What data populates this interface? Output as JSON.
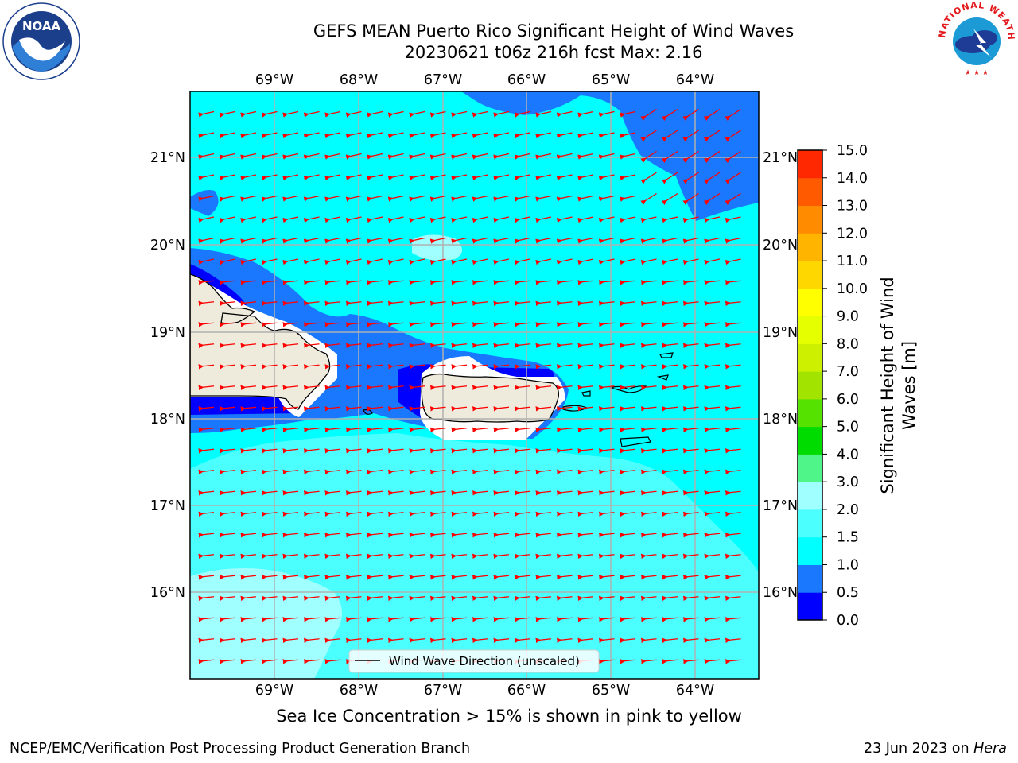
{
  "title": {
    "line1": "GEFS MEAN Puerto Rico Significant Height of Wind Waves",
    "line2": "20230621 t06z 216h fcst   Max: 2.16"
  },
  "logos": {
    "left": {
      "text": "NOAA",
      "ring_text": "NATIONAL OCEANIC AND ATMOSPHERIC ADMINISTRATION · U.S. DEPARTMENT OF COMMERCE"
    },
    "right": {
      "ring_text": "NATIONAL WEATHER SERVICE"
    }
  },
  "map": {
    "lon_labels": [
      "69°W",
      "68°W",
      "67°W",
      "66°W",
      "65°W",
      "64°W"
    ],
    "lat_labels": [
      "21°N",
      "20°N",
      "19°N",
      "18°N",
      "17°N",
      "16°N"
    ],
    "legend_label": "Wind Wave Direction (unscaled)",
    "land_color": "#efebdc",
    "arrow_color": "#ff0000"
  },
  "colorbar": {
    "label_line1": "Significant Height of Wind",
    "label_line2": "Waves [m]",
    "ticks": [
      "0.0",
      "0.5",
      "1.0",
      "1.5",
      "2.0",
      "3.0",
      "4.0",
      "5.0",
      "6.0",
      "7.0",
      "8.0",
      "9.0",
      "10.0",
      "11.0",
      "12.0",
      "13.0",
      "14.0",
      "15.0"
    ],
    "colors": [
      "#0000ff",
      "#1a78ff",
      "#00ffff",
      "#4cffff",
      "#a0ffff",
      "#50f58a",
      "#00dc00",
      "#56e200",
      "#a2e400",
      "#cdf000",
      "#e6ff00",
      "#ffff00",
      "#ffd700",
      "#ffb400",
      "#ff8c00",
      "#ff5a00",
      "#ff2800",
      "#ff0000"
    ]
  },
  "caption": "Sea Ice Concentration > 15% is shown in pink to yellow",
  "footer": {
    "left": "NCEP/EMC/Verification Post Processing Product Generation Branch",
    "right_prefix": "23 Jun 2023 on ",
    "right_host": "Hera"
  }
}
